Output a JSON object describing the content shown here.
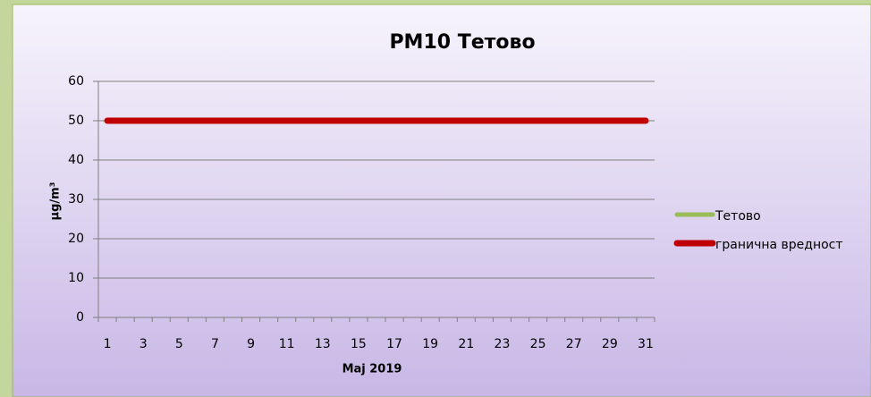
{
  "chart_data": {
    "type": "line",
    "title": "PM10 Тетово",
    "x_label": "Maj 2019",
    "y_label": "μg/m³",
    "categories": [
      "1",
      null,
      "3",
      null,
      "5",
      null,
      "7",
      null,
      "9",
      null,
      "11",
      null,
      "13",
      null,
      "15",
      null,
      "17",
      null,
      "19",
      null,
      "21",
      null,
      "23",
      null,
      "25",
      null,
      "27",
      null,
      "29",
      null,
      "31"
    ],
    "series": [
      {
        "name": "Тетово",
        "color": "#9bbb59",
        "values": [
          null,
          null,
          null,
          null,
          null,
          null,
          null,
          null,
          null,
          null,
          null,
          null,
          null,
          null,
          null,
          null,
          null,
          null,
          null,
          null,
          null,
          null,
          null,
          null,
          null,
          null,
          null,
          null,
          null,
          null,
          null
        ]
      },
      {
        "name": "гранична вредност",
        "color": "#c00000",
        "values": [
          50,
          50,
          50,
          50,
          50,
          50,
          50,
          50,
          50,
          50,
          50,
          50,
          50,
          50,
          50,
          50,
          50,
          50,
          50,
          50,
          50,
          50,
          50,
          50,
          50,
          50,
          50,
          50,
          50,
          50,
          50
        ]
      }
    ],
    "ylim": [
      0,
      60
    ],
    "yticks": [
      0,
      10,
      20,
      30,
      40,
      50,
      60
    ],
    "grid": true,
    "legend": "right"
  }
}
